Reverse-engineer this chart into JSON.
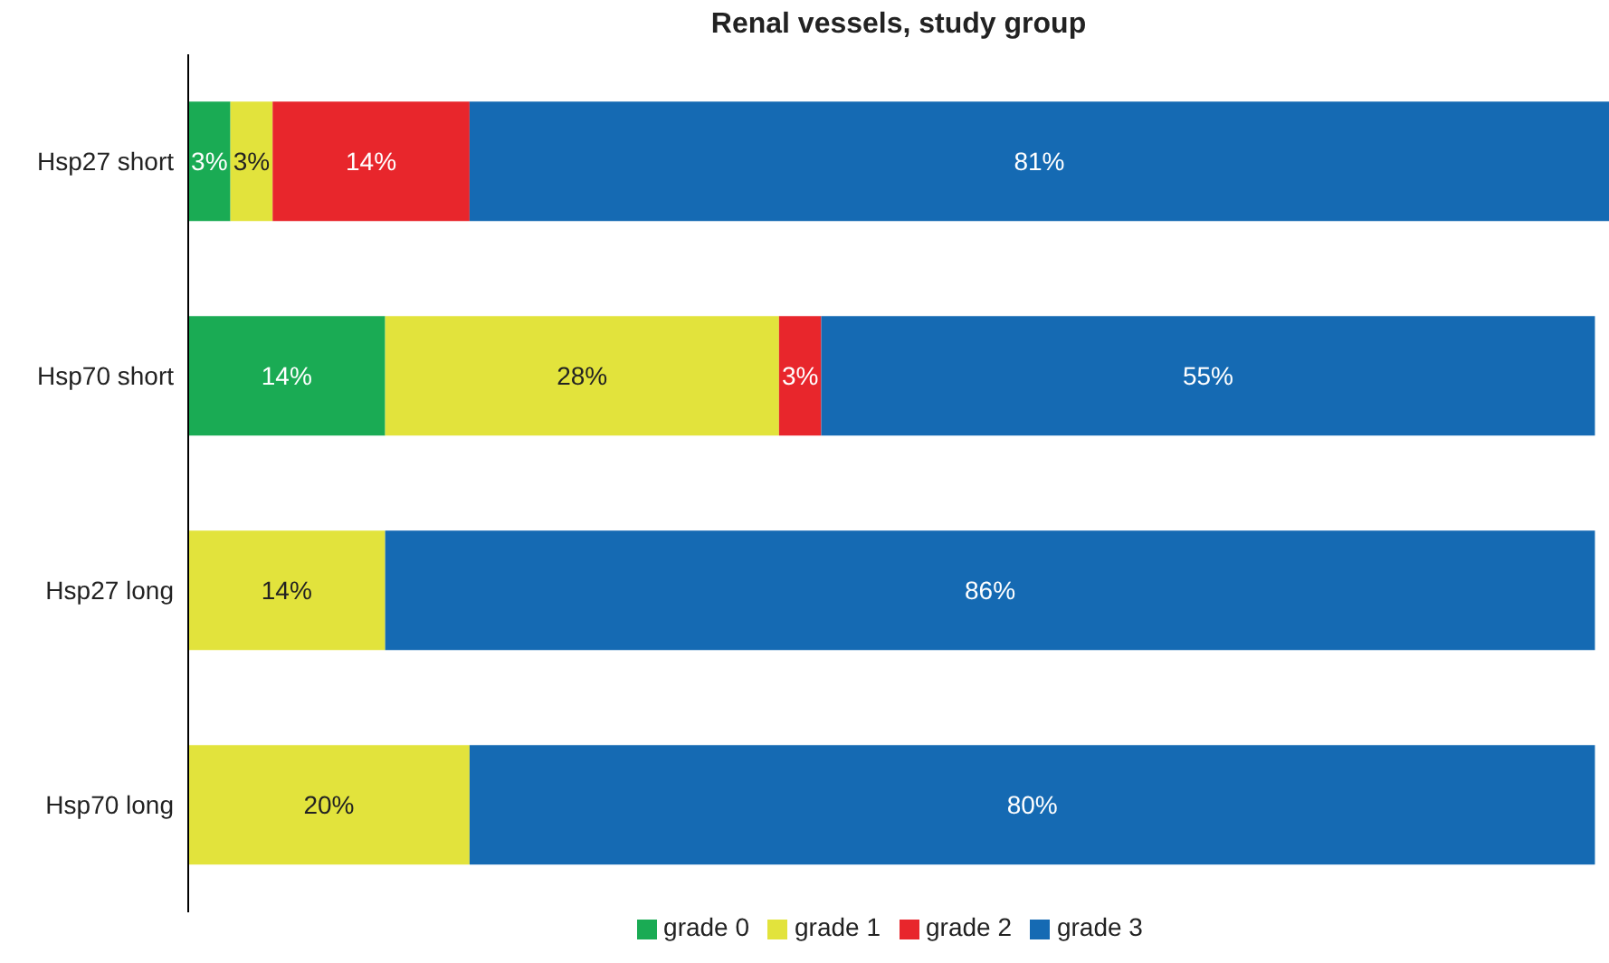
{
  "chart_data": {
    "type": "bar",
    "orientation": "horizontal",
    "stacked": true,
    "title": "Renal vessels, study group",
    "categories": [
      "Hsp27 short",
      "Hsp70 short",
      "Hsp27 long",
      "Hsp70 long"
    ],
    "series": [
      {
        "name": "grade 0",
        "color": "#1aab54",
        "values": [
          3,
          14,
          null,
          null
        ],
        "value_labels": [
          "3%",
          "14%",
          null,
          null
        ]
      },
      {
        "name": "grade 1",
        "color": "#e2e33c",
        "values": [
          3,
          28,
          14,
          20
        ],
        "value_labels": [
          "3%",
          "28%",
          "14%",
          "20%"
        ]
      },
      {
        "name": "grade 2",
        "color": "#e8262c",
        "values": [
          14,
          3,
          null,
          null
        ],
        "value_labels": [
          "14%",
          "3%",
          null,
          null
        ]
      },
      {
        "name": "grade 3",
        "color": "#156ab3",
        "values": [
          81,
          55,
          86,
          80
        ],
        "value_labels": [
          "81%",
          "55%",
          "86%",
          "80%"
        ]
      }
    ],
    "legend": "bottom"
  }
}
